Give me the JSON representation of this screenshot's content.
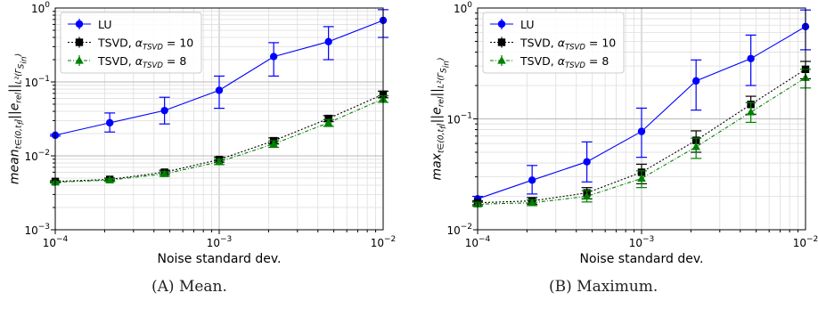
{
  "captions": [
    "(A) Mean.",
    "(B) Maximum."
  ],
  "chart_data": [
    {
      "type": "line",
      "panel": "A",
      "xlabel": "Noise standard dev.",
      "ylabel_html": "mean<sub>t∈(0,t<sub>f</sub>]</sub>||e<sub>rel</sub>||<sub>L²(Γ<sub>S<sub>in</sub></sub>)</sub>",
      "xscale": "log",
      "yscale": "log",
      "xlim": [
        0.0001,
        0.01
      ],
      "ylim": [
        0.001,
        1
      ],
      "x_ticks": [
        "10^-4",
        "10^-3",
        "10^-2"
      ],
      "y_ticks": [
        "10^-3",
        "10^-2",
        "10^-1",
        "10^0"
      ],
      "grid": true,
      "legend_position": "upper-left",
      "x": [
        0.0001,
        0.000215,
        0.000464,
        0.001,
        0.00215,
        0.00464,
        0.01
      ],
      "series": [
        {
          "name": "LU",
          "color": "#0000ff",
          "marker": "circle",
          "linestyle": "solid",
          "values": [
            0.019,
            0.028,
            0.041,
            0.077,
            0.22,
            0.35,
            0.68
          ],
          "error_low": [
            0.0185,
            0.021,
            0.027,
            0.044,
            0.12,
            0.2,
            0.4
          ],
          "error_high": [
            0.0195,
            0.038,
            0.062,
            0.12,
            0.34,
            0.56,
            0.95
          ]
        },
        {
          "name": "TSVD, α_TSVD = 10",
          "color": "#000000",
          "marker": "square",
          "linestyle": "dotted",
          "values": [
            0.0045,
            0.0048,
            0.006,
            0.0089,
            0.016,
            0.032,
            0.068
          ],
          "error_low": [
            0.0044,
            0.0046,
            0.0056,
            0.0082,
            0.0145,
            0.029,
            0.061
          ],
          "error_high": [
            0.0046,
            0.005,
            0.0064,
            0.0096,
            0.0175,
            0.035,
            0.075
          ]
        },
        {
          "name": "TSVD, α_TSVD = 8",
          "color": "#008000",
          "marker": "triangle",
          "linestyle": "dashdot",
          "values": [
            0.0044,
            0.0047,
            0.0057,
            0.0083,
            0.0145,
            0.028,
            0.059
          ],
          "error_low": [
            0.0043,
            0.0045,
            0.0053,
            0.0076,
            0.013,
            0.025,
            0.053
          ],
          "error_high": [
            0.0045,
            0.0049,
            0.0061,
            0.009,
            0.016,
            0.031,
            0.065
          ]
        }
      ]
    },
    {
      "type": "line",
      "panel": "B",
      "xlabel": "Noise standard dev.",
      "ylabel_html": "max<sub>t∈(0,t<sub>f</sub>]</sub>||e<sub>rel</sub>||<sub>L²(Γ<sub>S<sub>in</sub></sub>)</sub>",
      "xscale": "log",
      "yscale": "log",
      "xlim": [
        0.0001,
        0.01
      ],
      "ylim": [
        0.01,
        1
      ],
      "x_ticks": [
        "10^-4",
        "10^-3",
        "10^-2"
      ],
      "y_ticks": [
        "10^-2",
        "10^-1",
        "10^0"
      ],
      "grid": true,
      "legend_position": "upper-left",
      "x": [
        0.0001,
        0.000215,
        0.000464,
        0.001,
        0.00215,
        0.00464,
        0.01
      ],
      "series": [
        {
          "name": "LU",
          "color": "#0000ff",
          "marker": "circle",
          "linestyle": "solid",
          "values": [
            0.019,
            0.028,
            0.041,
            0.077,
            0.22,
            0.35,
            0.68
          ],
          "error_low": [
            0.0178,
            0.021,
            0.027,
            0.045,
            0.12,
            0.2,
            0.42
          ],
          "error_high": [
            0.02,
            0.038,
            0.062,
            0.125,
            0.34,
            0.57,
            0.96
          ]
        },
        {
          "name": "TSVD, α_TSVD = 10",
          "color": "#000000",
          "marker": "square",
          "linestyle": "dotted",
          "values": [
            0.0175,
            0.0182,
            0.0215,
            0.033,
            0.064,
            0.135,
            0.28
          ],
          "error_low": [
            0.0168,
            0.017,
            0.019,
            0.026,
            0.05,
            0.11,
            0.23
          ],
          "error_high": [
            0.0182,
            0.0195,
            0.024,
            0.039,
            0.078,
            0.16,
            0.33
          ]
        },
        {
          "name": "TSVD, α_TSVD = 8",
          "color": "#008000",
          "marker": "triangle",
          "linestyle": "dashdot",
          "values": [
            0.017,
            0.0175,
            0.02,
            0.029,
            0.056,
            0.115,
            0.235
          ],
          "error_low": [
            0.0163,
            0.0165,
            0.0178,
            0.024,
            0.044,
            0.093,
            0.19
          ],
          "error_high": [
            0.0177,
            0.0186,
            0.0225,
            0.034,
            0.067,
            0.14,
            0.28
          ]
        }
      ]
    }
  ]
}
